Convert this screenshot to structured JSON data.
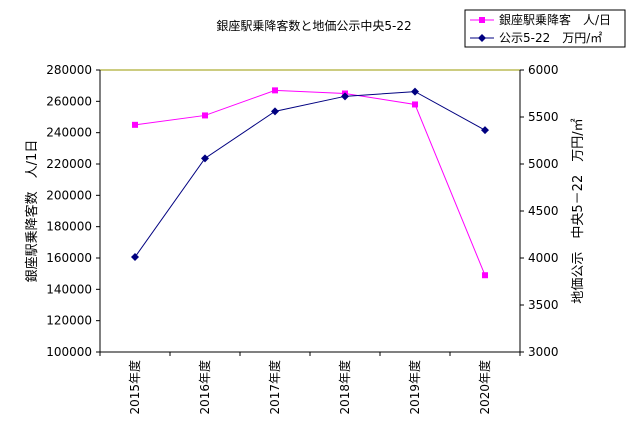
{
  "chart_data": {
    "type": "line",
    "title": "銀座駅乗降客数と地価公示中央5-22",
    "categories": [
      "2015年度",
      "2016年度",
      "2017年度",
      "2018年度",
      "2019年度",
      "2020年度"
    ],
    "y_left": {
      "label": "銀座駅乗降客数　人/1日",
      "range": [
        100000,
        280000
      ],
      "ticks": [
        "100000",
        "120000",
        "140000",
        "160000",
        "180000",
        "200000",
        "220000",
        "240000",
        "260000",
        "280000"
      ]
    },
    "y_right": {
      "label": "地価公示　中央5－22　万円/㎡",
      "range": [
        3000,
        6000
      ],
      "ticks": [
        "3000",
        "3500",
        "4000",
        "4500",
        "5000",
        "5500",
        "6000"
      ]
    },
    "series": [
      {
        "name": "銀座駅乗降客　人/日",
        "axis": "left",
        "color": "#ff00ff",
        "marker": "square",
        "values": [
          245000,
          251000,
          267000,
          265000,
          258000,
          149000
        ]
      },
      {
        "name": "公示5-22　万円/㎡",
        "axis": "right",
        "color": "#000080",
        "marker": "diamond",
        "values": [
          4010,
          5060,
          5560,
          5720,
          5770,
          5360
        ]
      }
    ],
    "grid": false,
    "legend_position": "top-right"
  }
}
